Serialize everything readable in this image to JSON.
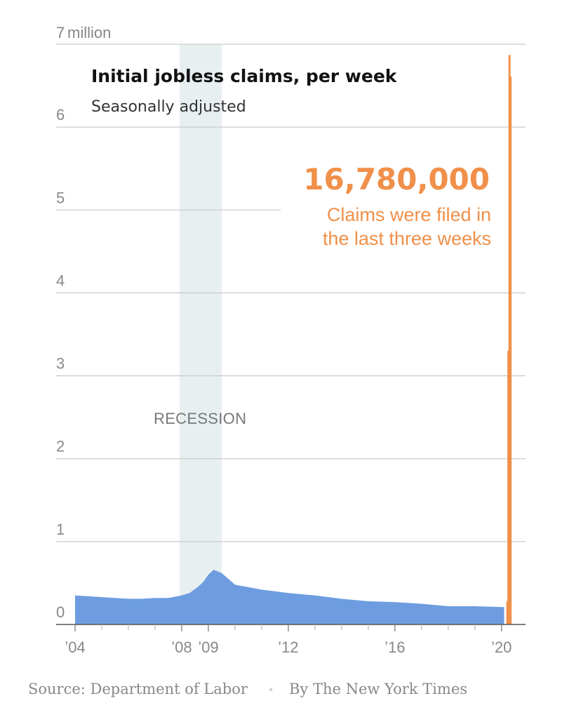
{
  "colors": {
    "historical": "#6d9de0",
    "covid": "#f0904a",
    "recession_band": "#e7eff0",
    "grid": "#cccccc",
    "axis_text": "#888888"
  },
  "chart_data": {
    "type": "bar",
    "title": "Initial jobless claims, per week",
    "subtitle": "Seasonally adjusted",
    "y_unit_label": "million",
    "ylim": [
      0,
      7
    ],
    "y_ticks": [
      {
        "value": 0,
        "label": "0"
      },
      {
        "value": 1,
        "label": "1"
      },
      {
        "value": 2,
        "label": "2"
      },
      {
        "value": 3,
        "label": "3"
      },
      {
        "value": 4,
        "label": "4"
      },
      {
        "value": 5,
        "label": "5"
      },
      {
        "value": 6,
        "label": "6"
      },
      {
        "value": 7,
        "label": "7"
      }
    ],
    "xlim": [
      2004,
      2020.35
    ],
    "x_ticks": [
      {
        "value": 2004,
        "label": "’04"
      },
      {
        "value": 2008,
        "label": "’08"
      },
      {
        "value": 2009,
        "label": "’09"
      },
      {
        "value": 2012,
        "label": "’12"
      },
      {
        "value": 2016,
        "label": "’16"
      },
      {
        "value": 2020,
        "label": "’20"
      }
    ],
    "minor_x_ticks": [
      2005,
      2006,
      2007,
      2010,
      2011,
      2013,
      2014,
      2015,
      2017,
      2018,
      2019
    ],
    "recession": {
      "start": 2007.92,
      "end": 2009.5,
      "label": "RECESSION"
    },
    "series": [
      {
        "name": "weekly claims (millions)",
        "type": "area",
        "x": [
          2004.0,
          2004.5,
          2005.0,
          2005.5,
          2006.0,
          2006.5,
          2007.0,
          2007.5,
          2008.0,
          2008.3,
          2008.6,
          2008.8,
          2009.0,
          2009.2,
          2009.5,
          2010.0,
          2011.0,
          2012.0,
          2013.0,
          2014.0,
          2015.0,
          2016.0,
          2017.0,
          2018.0,
          2019.0,
          2020.1
        ],
        "values": [
          0.35,
          0.34,
          0.33,
          0.32,
          0.31,
          0.31,
          0.32,
          0.32,
          0.35,
          0.38,
          0.45,
          0.51,
          0.6,
          0.66,
          0.62,
          0.48,
          0.42,
          0.38,
          0.35,
          0.31,
          0.28,
          0.27,
          0.25,
          0.22,
          0.22,
          0.21
        ]
      },
      {
        "name": "last four weeks (millions)",
        "type": "bar",
        "x": [
          2020.18,
          2020.22,
          2020.26,
          2020.3
        ],
        "values": [
          0.28,
          3.3,
          6.87,
          6.61
        ]
      }
    ],
    "annotation": {
      "value": "16,780,000",
      "text_line1": "Claims were filed in",
      "text_line2": "the last three weeks"
    }
  },
  "footer": {
    "source": "Source: Department of Labor",
    "separator": "•",
    "byline": "By The New York Times"
  }
}
